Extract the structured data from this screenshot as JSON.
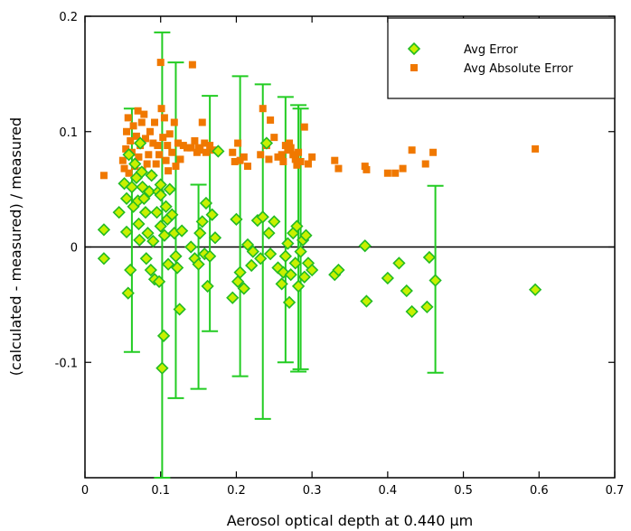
{
  "chart_data": {
    "type": "scatter",
    "xlabel": "Aerosol optical depth at 0.440 µm",
    "ylabel": "(calculated - measured) / measured",
    "xlim": [
      0,
      0.7
    ],
    "ylim": [
      -0.2,
      0.2
    ],
    "x_ticks": [
      0,
      0.1,
      0.2,
      0.3,
      0.4,
      0.5,
      0.6,
      0.7
    ],
    "x_tick_labels": [
      "0",
      "0.1",
      "0.2",
      "0.3",
      "0.4",
      "0.5",
      "0.6",
      "0.7"
    ],
    "y_ticks": [
      -0.1,
      0,
      0.1,
      0.2
    ],
    "y_tick_labels": [
      "-0.1",
      "0",
      "0.1",
      "0.2"
    ],
    "zero_line": 0,
    "grid": false,
    "legend_position": "top-right",
    "colors": {
      "avg_error_fill": "#c8f000",
      "avg_error_stroke": "#22bb22",
      "avg_abs_error": "#f07800",
      "error_bar": "#22cc22"
    },
    "series": [
      {
        "name": "Avg Error",
        "marker": "diamond",
        "points": [
          [
            0.025,
            0.015
          ],
          [
            0.025,
            -0.01
          ],
          [
            0.045,
            0.03
          ],
          [
            0.052,
            0.055
          ],
          [
            0.055,
            0.042
          ],
          [
            0.055,
            0.013
          ],
          [
            0.057,
            -0.04
          ],
          [
            0.058,
            0.08
          ],
          [
            0.06,
            -0.02
          ],
          [
            0.062,
            0.052
          ],
          [
            0.064,
            0.035
          ],
          [
            0.066,
            0.072
          ],
          [
            0.068,
            0.06
          ],
          [
            0.07,
            0.04
          ],
          [
            0.071,
            0.02
          ],
          [
            0.072,
            0.006
          ],
          [
            0.073,
            0.09
          ],
          [
            0.075,
            0.065
          ],
          [
            0.076,
            0.052
          ],
          [
            0.078,
            0.042
          ],
          [
            0.08,
            0.03
          ],
          [
            0.081,
            -0.01
          ],
          [
            0.083,
            0.012
          ],
          [
            0.085,
            0.048
          ],
          [
            0.087,
            -0.02
          ],
          [
            0.088,
            0.062
          ],
          [
            0.09,
            0.005
          ],
          [
            0.092,
            -0.028
          ],
          [
            0.095,
            0.03
          ],
          [
            0.097,
            0.048
          ],
          [
            0.098,
            -0.03
          ],
          [
            0.1,
            0.045
          ],
          [
            0.1,
            0.018
          ],
          [
            0.1,
            0.054
          ],
          [
            0.102,
            -0.105
          ],
          [
            0.104,
            -0.077
          ],
          [
            0.105,
            0.01
          ],
          [
            0.107,
            0.035
          ],
          [
            0.109,
            0.024
          ],
          [
            0.11,
            -0.015
          ],
          [
            0.112,
            0.05
          ],
          [
            0.115,
            0.028
          ],
          [
            0.118,
            0.012
          ],
          [
            0.12,
            -0.008
          ],
          [
            0.122,
            -0.018
          ],
          [
            0.125,
            -0.054
          ],
          [
            0.128,
            0.014
          ],
          [
            0.14,
            0.0
          ],
          [
            0.145,
            -0.01
          ],
          [
            0.15,
            -0.015
          ],
          [
            0.152,
            0.012
          ],
          [
            0.155,
            0.022
          ],
          [
            0.158,
            -0.006
          ],
          [
            0.16,
            0.038
          ],
          [
            0.162,
            -0.034
          ],
          [
            0.165,
            -0.008
          ],
          [
            0.168,
            0.028
          ],
          [
            0.172,
            0.008
          ],
          [
            0.176,
            0.083
          ],
          [
            0.195,
            -0.044
          ],
          [
            0.2,
            0.024
          ],
          [
            0.202,
            -0.03
          ],
          [
            0.205,
            -0.022
          ],
          [
            0.21,
            -0.036
          ],
          [
            0.215,
            0.002
          ],
          [
            0.22,
            -0.016
          ],
          [
            0.222,
            -0.004
          ],
          [
            0.228,
            0.023
          ],
          [
            0.232,
            -0.01
          ],
          [
            0.235,
            0.026
          ],
          [
            0.24,
            0.09
          ],
          [
            0.243,
            0.012
          ],
          [
            0.245,
            -0.006
          ],
          [
            0.25,
            0.022
          ],
          [
            0.255,
            -0.018
          ],
          [
            0.26,
            -0.032
          ],
          [
            0.262,
            -0.022
          ],
          [
            0.265,
            -0.008
          ],
          [
            0.268,
            0.003
          ],
          [
            0.27,
            -0.048
          ],
          [
            0.272,
            -0.024
          ],
          [
            0.275,
            0.012
          ],
          [
            0.278,
            -0.014
          ],
          [
            0.28,
            0.018
          ],
          [
            0.282,
            -0.034
          ],
          [
            0.285,
            -0.004
          ],
          [
            0.288,
            0.006
          ],
          [
            0.29,
            -0.026
          ],
          [
            0.292,
            0.01
          ],
          [
            0.295,
            -0.014
          ],
          [
            0.3,
            -0.02
          ],
          [
            0.33,
            -0.024
          ],
          [
            0.335,
            -0.02
          ],
          [
            0.37,
            0.001
          ],
          [
            0.372,
            -0.047
          ],
          [
            0.4,
            -0.027
          ],
          [
            0.415,
            -0.014
          ],
          [
            0.425,
            -0.038
          ],
          [
            0.432,
            -0.056
          ],
          [
            0.452,
            -0.052
          ],
          [
            0.455,
            -0.009
          ],
          [
            0.463,
            -0.029
          ],
          [
            0.595,
            -0.037
          ]
        ],
        "error_bars": [
          {
            "x": 0.062,
            "low": -0.091,
            "high": 0.12
          },
          {
            "x": 0.102,
            "low": -0.2,
            "high": 0.186
          },
          {
            "x": 0.12,
            "low": -0.131,
            "high": 0.16
          },
          {
            "x": 0.165,
            "low": -0.073,
            "high": 0.131
          },
          {
            "x": 0.15,
            "low": -0.123,
            "high": 0.054
          },
          {
            "x": 0.205,
            "low": -0.112,
            "high": 0.148
          },
          {
            "x": 0.235,
            "low": -0.149,
            "high": 0.141
          },
          {
            "x": 0.282,
            "low": -0.108,
            "high": 0.123
          },
          {
            "x": 0.285,
            "low": -0.106,
            "high": 0.12
          },
          {
            "x": 0.265,
            "low": -0.1,
            "high": 0.13
          },
          {
            "x": 0.463,
            "low": -0.109,
            "high": 0.053
          }
        ]
      },
      {
        "name": "Avg Absolute Error",
        "marker": "square",
        "points": [
          [
            0.025,
            0.062
          ],
          [
            0.05,
            0.075
          ],
          [
            0.052,
            0.068
          ],
          [
            0.054,
            0.085
          ],
          [
            0.055,
            0.1
          ],
          [
            0.057,
            0.112
          ],
          [
            0.058,
            0.064
          ],
          [
            0.06,
            0.092
          ],
          [
            0.062,
            0.082
          ],
          [
            0.064,
            0.105
          ],
          [
            0.066,
            0.07
          ],
          [
            0.068,
            0.096
          ],
          [
            0.07,
            0.118
          ],
          [
            0.071,
            0.078
          ],
          [
            0.073,
            0.088
          ],
          [
            0.075,
            0.108
          ],
          [
            0.076,
            0.066
          ],
          [
            0.078,
            0.115
          ],
          [
            0.08,
            0.094
          ],
          [
            0.082,
            0.072
          ],
          [
            0.084,
            0.08
          ],
          [
            0.086,
            0.1
          ],
          [
            0.088,
            0.062
          ],
          [
            0.09,
            0.09
          ],
          [
            0.092,
            0.108
          ],
          [
            0.094,
            0.072
          ],
          [
            0.096,
            0.088
          ],
          [
            0.098,
            0.08
          ],
          [
            0.1,
            0.16
          ],
          [
            0.101,
            0.12
          ],
          [
            0.103,
            0.095
          ],
          [
            0.105,
            0.112
          ],
          [
            0.107,
            0.075
          ],
          [
            0.109,
            0.088
          ],
          [
            0.11,
            0.066
          ],
          [
            0.112,
            0.098
          ],
          [
            0.115,
            0.082
          ],
          [
            0.118,
            0.108
          ],
          [
            0.12,
            0.07
          ],
          [
            0.123,
            0.09
          ],
          [
            0.126,
            0.076
          ],
          [
            0.13,
            0.088
          ],
          [
            0.135,
            0.086
          ],
          [
            0.14,
            0.086
          ],
          [
            0.142,
            0.158
          ],
          [
            0.145,
            0.092
          ],
          [
            0.148,
            0.082
          ],
          [
            0.15,
            0.086
          ],
          [
            0.152,
            0.084
          ],
          [
            0.155,
            0.108
          ],
          [
            0.158,
            0.09
          ],
          [
            0.16,
            0.082
          ],
          [
            0.165,
            0.088
          ],
          [
            0.17,
            0.084
          ],
          [
            0.195,
            0.082
          ],
          [
            0.198,
            0.074
          ],
          [
            0.202,
            0.09
          ],
          [
            0.205,
            0.075
          ],
          [
            0.21,
            0.078
          ],
          [
            0.215,
            0.07
          ],
          [
            0.232,
            0.08
          ],
          [
            0.235,
            0.12
          ],
          [
            0.24,
            0.088
          ],
          [
            0.243,
            0.076
          ],
          [
            0.245,
            0.11
          ],
          [
            0.25,
            0.095
          ],
          [
            0.255,
            0.078
          ],
          [
            0.26,
            0.08
          ],
          [
            0.262,
            0.074
          ],
          [
            0.265,
            0.088
          ],
          [
            0.268,
            0.084
          ],
          [
            0.27,
            0.09
          ],
          [
            0.272,
            0.086
          ],
          [
            0.275,
            0.08
          ],
          [
            0.278,
            0.076
          ],
          [
            0.28,
            0.071
          ],
          [
            0.282,
            0.082
          ],
          [
            0.285,
            0.074
          ],
          [
            0.29,
            0.104
          ],
          [
            0.295,
            0.072
          ],
          [
            0.3,
            0.078
          ],
          [
            0.33,
            0.075
          ],
          [
            0.335,
            0.068
          ],
          [
            0.37,
            0.07
          ],
          [
            0.372,
            0.067
          ],
          [
            0.4,
            0.064
          ],
          [
            0.41,
            0.064
          ],
          [
            0.42,
            0.068
          ],
          [
            0.432,
            0.084
          ],
          [
            0.45,
            0.072
          ],
          [
            0.46,
            0.082
          ],
          [
            0.595,
            0.085
          ]
        ]
      }
    ]
  }
}
